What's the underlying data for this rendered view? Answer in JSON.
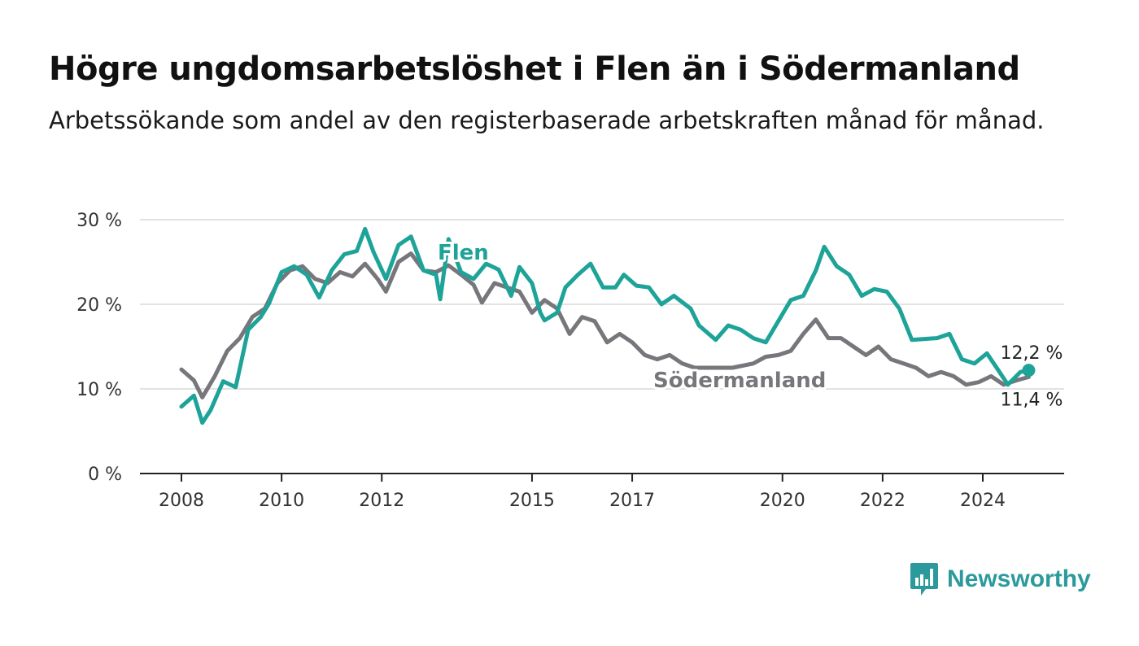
{
  "header": {
    "title": "Högre ungdomsarbetslöshet i Flen än i Södermanland",
    "subtitle": "Arbetssökande som andel av den registerbaserade arbetskraften månad för månad."
  },
  "brand": {
    "name": "Newsworthy",
    "icon": "bar-chart-speech-bubble-icon",
    "color": "#2c9a9c"
  },
  "chart_data": {
    "type": "line",
    "y_ticks": [
      "0 %",
      "10 %",
      "20 %",
      "30 %"
    ],
    "ylim": [
      0,
      30
    ],
    "x_ticks": [
      {
        "label": "2008",
        "year": 2008
      },
      {
        "label": "2010",
        "year": 2010
      },
      {
        "label": "2012",
        "year": 2012
      },
      {
        "label": "2015",
        "year": 2015
      },
      {
        "label": "2017",
        "year": 2017
      },
      {
        "label": "2020",
        "year": 2020
      },
      {
        "label": "2022",
        "year": 2022
      },
      {
        "label": "2024",
        "year": 2024
      }
    ],
    "grid": true,
    "end_labels": {
      "Flen": "12,2 %",
      "Södermanland": "11,4 %"
    },
    "series": [
      {
        "name": "Flen",
        "color": "#1ea399",
        "points": [
          [
            "2008-01",
            7.9
          ],
          [
            "2008-04",
            9.2
          ],
          [
            "2008-06",
            6.0
          ],
          [
            "2008-08",
            7.5
          ],
          [
            "2008-11",
            10.9
          ],
          [
            "2009-02",
            10.2
          ],
          [
            "2009-05",
            17.0
          ],
          [
            "2009-08",
            18.5
          ],
          [
            "2009-10",
            20.1
          ],
          [
            "2010-01",
            23.8
          ],
          [
            "2010-04",
            24.5
          ],
          [
            "2010-07",
            23.5
          ],
          [
            "2010-10",
            20.8
          ],
          [
            "2011-01",
            24.0
          ],
          [
            "2011-04",
            25.9
          ],
          [
            "2011-07",
            26.3
          ],
          [
            "2011-09",
            28.9
          ],
          [
            "2011-11",
            26.2
          ],
          [
            "2012-02",
            23.0
          ],
          [
            "2012-05",
            27.0
          ],
          [
            "2012-08",
            28.0
          ],
          [
            "2012-11",
            24.0
          ],
          [
            "2013-02",
            23.5
          ],
          [
            "2013-03",
            20.6
          ],
          [
            "2013-05",
            27.7
          ],
          [
            "2013-08",
            23.8
          ],
          [
            "2013-11",
            23.0
          ],
          [
            "2014-02",
            24.8
          ],
          [
            "2014-05",
            24.1
          ],
          [
            "2014-08",
            21.0
          ],
          [
            "2014-10",
            24.4
          ],
          [
            "2015-01",
            22.5
          ],
          [
            "2015-03",
            19.0
          ],
          [
            "2015-04",
            18.1
          ],
          [
            "2015-07",
            19.0
          ],
          [
            "2015-09",
            22.0
          ],
          [
            "2015-12",
            23.5
          ],
          [
            "2016-03",
            24.8
          ],
          [
            "2016-06",
            22.0
          ],
          [
            "2016-09",
            22.0
          ],
          [
            "2016-11",
            23.5
          ],
          [
            "2017-02",
            22.2
          ],
          [
            "2017-05",
            22.0
          ],
          [
            "2017-08",
            20.0
          ],
          [
            "2017-11",
            21.0
          ],
          [
            "2018-03",
            19.5
          ],
          [
            "2018-05",
            17.5
          ],
          [
            "2018-09",
            15.8
          ],
          [
            "2018-12",
            17.5
          ],
          [
            "2019-03",
            17.0
          ],
          [
            "2019-06",
            16.0
          ],
          [
            "2019-09",
            15.5
          ],
          [
            "2019-12",
            18.0
          ],
          [
            "2020-03",
            20.5
          ],
          [
            "2020-06",
            21.0
          ],
          [
            "2020-09",
            24.0
          ],
          [
            "2020-11",
            26.8
          ],
          [
            "2021-02",
            24.5
          ],
          [
            "2021-05",
            23.5
          ],
          [
            "2021-08",
            21.0
          ],
          [
            "2021-11",
            21.8
          ],
          [
            "2022-02",
            21.5
          ],
          [
            "2022-05",
            19.5
          ],
          [
            "2022-08",
            15.8
          ],
          [
            "2022-11",
            15.9
          ],
          [
            "2023-02",
            16.0
          ],
          [
            "2023-05",
            16.5
          ],
          [
            "2023-08",
            13.5
          ],
          [
            "2023-11",
            13.0
          ],
          [
            "2024-02",
            14.2
          ],
          [
            "2024-05",
            12.0
          ],
          [
            "2024-07",
            10.5
          ],
          [
            "2024-10",
            12.0
          ],
          [
            "2024-12",
            12.2
          ]
        ]
      },
      {
        "name": "Södermanland",
        "color": "#76767b",
        "points": [
          [
            "2008-01",
            12.3
          ],
          [
            "2008-04",
            11.0
          ],
          [
            "2008-06",
            9.0
          ],
          [
            "2008-09",
            11.5
          ],
          [
            "2008-12",
            14.5
          ],
          [
            "2009-03",
            16.0
          ],
          [
            "2009-06",
            18.5
          ],
          [
            "2009-09",
            19.5
          ],
          [
            "2009-12",
            22.5
          ],
          [
            "2010-03",
            24.0
          ],
          [
            "2010-06",
            24.5
          ],
          [
            "2010-09",
            23.0
          ],
          [
            "2010-12",
            22.5
          ],
          [
            "2011-03",
            23.8
          ],
          [
            "2011-06",
            23.3
          ],
          [
            "2011-09",
            24.8
          ],
          [
            "2011-12",
            23.0
          ],
          [
            "2012-02",
            21.5
          ],
          [
            "2012-05",
            25.0
          ],
          [
            "2012-08",
            26.0
          ],
          [
            "2012-11",
            24.0
          ],
          [
            "2013-02",
            23.8
          ],
          [
            "2013-05",
            24.6
          ],
          [
            "2013-08",
            23.5
          ],
          [
            "2013-11",
            22.3
          ],
          [
            "2014-01",
            20.2
          ],
          [
            "2014-04",
            22.5
          ],
          [
            "2014-07",
            22.0
          ],
          [
            "2014-10",
            21.5
          ],
          [
            "2015-01",
            19.0
          ],
          [
            "2015-04",
            20.5
          ],
          [
            "2015-07",
            19.5
          ],
          [
            "2015-10",
            16.5
          ],
          [
            "2016-01",
            18.5
          ],
          [
            "2016-04",
            18.0
          ],
          [
            "2016-07",
            15.5
          ],
          [
            "2016-10",
            16.5
          ],
          [
            "2017-01",
            15.5
          ],
          [
            "2017-04",
            14.0
          ],
          [
            "2017-07",
            13.5
          ],
          [
            "2017-10",
            14.0
          ],
          [
            "2018-01",
            13.0
          ],
          [
            "2018-04",
            12.5
          ],
          [
            "2019-01",
            12.5
          ],
          [
            "2019-06",
            13.0
          ],
          [
            "2019-09",
            13.8
          ],
          [
            "2019-12",
            14.0
          ],
          [
            "2020-03",
            14.5
          ],
          [
            "2020-06",
            16.5
          ],
          [
            "2020-09",
            18.2
          ],
          [
            "2020-12",
            16.0
          ],
          [
            "2021-03",
            16.0
          ],
          [
            "2021-06",
            15.0
          ],
          [
            "2021-09",
            14.0
          ],
          [
            "2021-12",
            15.0
          ],
          [
            "2022-03",
            13.5
          ],
          [
            "2022-06",
            13.0
          ],
          [
            "2022-09",
            12.5
          ],
          [
            "2022-12",
            11.5
          ],
          [
            "2023-03",
            12.0
          ],
          [
            "2023-06",
            11.5
          ],
          [
            "2023-09",
            10.5
          ],
          [
            "2023-12",
            10.8
          ],
          [
            "2024-03",
            11.5
          ],
          [
            "2024-06",
            10.5
          ],
          [
            "2024-09",
            11.0
          ],
          [
            "2024-12",
            11.4
          ]
        ]
      }
    ]
  }
}
